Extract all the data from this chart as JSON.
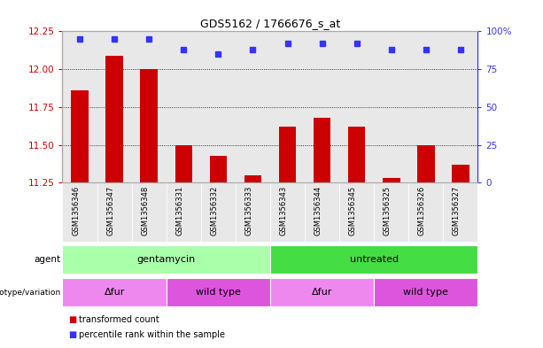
{
  "title": "GDS5162 / 1766676_s_at",
  "samples": [
    "GSM1356346",
    "GSM1356347",
    "GSM1356348",
    "GSM1356331",
    "GSM1356332",
    "GSM1356333",
    "GSM1356343",
    "GSM1356344",
    "GSM1356345",
    "GSM1356325",
    "GSM1356326",
    "GSM1356327"
  ],
  "bar_values": [
    11.86,
    12.09,
    12.0,
    11.5,
    11.43,
    11.3,
    11.62,
    11.68,
    11.62,
    11.28,
    11.5,
    11.37
  ],
  "percentile_values": [
    95,
    95,
    95,
    88,
    85,
    88,
    92,
    92,
    92,
    88,
    88,
    88
  ],
  "ylim": [
    11.25,
    12.25
  ],
  "yticks": [
    11.25,
    11.5,
    11.75,
    12.0,
    12.25
  ],
  "right_yticks": [
    0,
    25,
    50,
    75,
    100
  ],
  "right_yticklabels": [
    "0",
    "25",
    "50",
    "75",
    "100%"
  ],
  "bar_color": "#cc0000",
  "dot_color": "#3333ff",
  "bar_width": 0.5,
  "agent_labels": [
    {
      "label": "gentamycin",
      "start": 0,
      "end": 6,
      "color": "#aaffaa"
    },
    {
      "label": "untreated",
      "start": 6,
      "end": 12,
      "color": "#44dd44"
    }
  ],
  "genotype_labels": [
    {
      "label": "Δfur",
      "start": 0,
      "end": 3,
      "color": "#ee88ee"
    },
    {
      "label": "wild type",
      "start": 3,
      "end": 6,
      "color": "#dd55dd"
    },
    {
      "label": "Δfur",
      "start": 6,
      "end": 9,
      "color": "#ee88ee"
    },
    {
      "label": "wild type",
      "start": 9,
      "end": 12,
      "color": "#dd55dd"
    }
  ],
  "legend_items": [
    {
      "label": "transformed count",
      "color": "#cc0000"
    },
    {
      "label": "percentile rank within the sample",
      "color": "#3333ff"
    }
  ],
  "plot_bg": "#e8e8e8"
}
